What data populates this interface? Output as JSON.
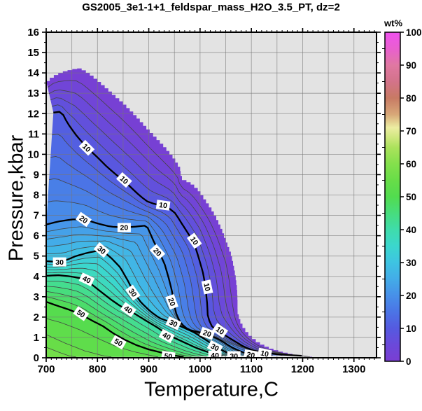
{
  "title": "GS2005_3e1-1+1_feldspar_mass_H2O_3.5_PT, dz=2",
  "colorbar": {
    "title": "wt%",
    "tick_labels": [
      0,
      10,
      20,
      30,
      40,
      50,
      60,
      70,
      80,
      90,
      100
    ],
    "minor_ticks": [
      5,
      15,
      25,
      35,
      45,
      55,
      65,
      75,
      85,
      95
    ]
  },
  "colors": {
    "plot_bg": "#e3e3e3",
    "grid": "#777777",
    "thin_contour": "#444444",
    "major_contour": "#000000",
    "frame": "#000000",
    "label_box": "#ffffff"
  },
  "chart_data": {
    "type": "contour",
    "title": "GS2005_3e1-1+1_feldspar_mass_H2O_3.5_PT, dz=2",
    "xlabel": "Temperature,C",
    "ylabel": "Pressure,kbar",
    "xlim": [
      700,
      1344
    ],
    "ylim": [
      0,
      16
    ],
    "x_tick_labels": [
      700,
      800,
      900,
      1000,
      1100,
      1200,
      1300
    ],
    "y_tick_labels": [
      0,
      1,
      2,
      3,
      4,
      5,
      6,
      7,
      8,
      9,
      10,
      11,
      12,
      13,
      14,
      15,
      16
    ],
    "x_major": 100,
    "x_minor": 10,
    "x_grid": 50,
    "y_major": 1,
    "y_minor": 0.5,
    "y_grid": 1,
    "contour_interval": 2,
    "major_contour_interval": 10,
    "max_value": 57,
    "colormap_stops": [
      {
        "v": 0,
        "c": "#7a3ed2"
      },
      {
        "v": 5,
        "c": "#6b49da"
      },
      {
        "v": 10,
        "c": "#555ae0"
      },
      {
        "v": 15,
        "c": "#4b74e6"
      },
      {
        "v": 20,
        "c": "#4790e9"
      },
      {
        "v": 25,
        "c": "#43ace8"
      },
      {
        "v": 30,
        "c": "#3ec4e2"
      },
      {
        "v": 35,
        "c": "#3bd7cd"
      },
      {
        "v": 40,
        "c": "#3fdcab"
      },
      {
        "v": 45,
        "c": "#47dd7d"
      },
      {
        "v": 50,
        "c": "#52dc4f"
      },
      {
        "v": 55,
        "c": "#68dd48"
      },
      {
        "v": 60,
        "c": "#84e04c"
      },
      {
        "v": 65,
        "c": "#abe25c"
      },
      {
        "v": 68,
        "c": "#cfe87e"
      },
      {
        "v": 71,
        "c": "#eceda2"
      },
      {
        "v": 75,
        "c": "#d8a878"
      },
      {
        "v": 80,
        "c": "#c87a64"
      },
      {
        "v": 85,
        "c": "#d3738a"
      },
      {
        "v": 90,
        "c": "#e078a2"
      },
      {
        "v": 95,
        "c": "#e95fcf"
      },
      {
        "v": 100,
        "c": "#ef52ee"
      }
    ],
    "contours": [
      {
        "level": 0,
        "pts": [
          [
            700,
            13.6
          ],
          [
            706,
            13.75
          ],
          [
            718,
            13.95
          ],
          [
            733,
            14.08
          ],
          [
            748,
            14.18
          ],
          [
            760,
            14.22
          ],
          [
            772,
            14.1
          ],
          [
            786,
            13.85
          ],
          [
            800,
            13.55
          ],
          [
            816,
            13.2
          ],
          [
            831,
            12.85
          ],
          [
            847,
            12.5
          ],
          [
            863,
            12.1
          ],
          [
            880,
            11.65
          ],
          [
            896,
            11.2
          ],
          [
            913,
            10.75
          ],
          [
            930,
            10.3
          ],
          [
            946,
            9.8
          ],
          [
            954,
            9.5
          ],
          [
            961,
            9.2
          ],
          [
            963,
            8.75
          ],
          [
            980,
            8.55
          ],
          [
            995,
            8.2
          ],
          [
            1010,
            7.65
          ],
          [
            1021,
            7.25
          ],
          [
            1032,
            6.75
          ],
          [
            1042,
            6.2
          ],
          [
            1051,
            5.6
          ],
          [
            1060,
            5.0
          ],
          [
            1065,
            4.45
          ],
          [
            1069,
            3.9
          ],
          [
            1072,
            3.3
          ],
          [
            1073,
            2.7
          ],
          [
            1073,
            2.15
          ],
          [
            1077,
            1.75
          ],
          [
            1084,
            1.4
          ],
          [
            1095,
            1.05
          ],
          [
            1111,
            0.72
          ],
          [
            1130,
            0.48
          ],
          [
            1151,
            0.31
          ],
          [
            1173,
            0.18
          ],
          [
            1195,
            0.1
          ],
          [
            1218,
            0.04
          ]
        ]
      },
      {
        "level": 10,
        "pts": [
          [
            714,
            12.05
          ],
          [
            730,
            12.1
          ],
          [
            741,
            11.55
          ],
          [
            761,
            10.85
          ],
          [
            779,
            10.35
          ],
          [
            800,
            9.85
          ],
          [
            820,
            9.35
          ],
          [
            841,
            8.9
          ],
          [
            862,
            8.45
          ],
          [
            883,
            7.95
          ],
          [
            899,
            7.65
          ],
          [
            913,
            7.55
          ],
          [
            930,
            7.45
          ],
          [
            942,
            7.3
          ],
          [
            952,
            7.1
          ],
          [
            963,
            6.65
          ],
          [
            977,
            6.1
          ],
          [
            988,
            5.65
          ],
          [
            997,
            4.95
          ],
          [
            1006,
            4.15
          ],
          [
            1011,
            3.4
          ],
          [
            1014,
            2.6
          ],
          [
            1015,
            2.05
          ],
          [
            1021,
            1.6
          ],
          [
            1032,
            1.35
          ],
          [
            1046,
            1.15
          ],
          [
            1065,
            0.85
          ],
          [
            1087,
            0.52
          ],
          [
            1106,
            0.34
          ],
          [
            1129,
            0.24
          ],
          [
            1152,
            0.17
          ],
          [
            1176,
            0.13
          ],
          [
            1198,
            0.1
          ]
        ]
      },
      {
        "level": 20,
        "pts": [
          [
            700,
            6.55
          ],
          [
            724,
            6.7
          ],
          [
            751,
            6.8
          ],
          [
            775,
            6.8
          ],
          [
            800,
            6.6
          ],
          [
            824,
            6.45
          ],
          [
            852,
            6.4
          ],
          [
            876,
            6.45
          ],
          [
            896,
            6.5
          ],
          [
            910,
            5.7
          ],
          [
            921,
            5.15
          ],
          [
            931,
            4.6
          ],
          [
            939,
            3.9
          ],
          [
            945,
            3.3
          ],
          [
            949,
            2.7
          ],
          [
            953,
            2.2
          ],
          [
            960,
            1.8
          ],
          [
            970,
            1.5
          ],
          [
            982,
            1.35
          ],
          [
            999,
            1.25
          ],
          [
            1014,
            1.15
          ],
          [
            1029,
            1.0
          ],
          [
            1044,
            0.8
          ],
          [
            1059,
            0.55
          ],
          [
            1076,
            0.34
          ],
          [
            1091,
            0.21
          ],
          [
            1104,
            0.13
          ]
        ]
      },
      {
        "level": 30,
        "pts": [
          [
            700,
            4.75
          ],
          [
            717,
            4.72
          ],
          [
            737,
            4.78
          ],
          [
            758,
            5.0
          ],
          [
            779,
            5.15
          ],
          [
            808,
            5.3
          ],
          [
            827,
            4.9
          ],
          [
            844,
            4.45
          ],
          [
            859,
            3.8
          ],
          [
            871,
            3.2
          ],
          [
            885,
            2.72
          ],
          [
            902,
            2.3
          ],
          [
            921,
            1.95
          ],
          [
            948,
            1.7
          ],
          [
            968,
            1.48
          ],
          [
            988,
            1.25
          ],
          [
            1007,
            0.95
          ],
          [
            1025,
            0.65
          ],
          [
            1042,
            0.38
          ],
          [
            1057,
            0.2
          ],
          [
            1072,
            0.1
          ]
        ]
      },
      {
        "level": 40,
        "pts": [
          [
            700,
            4.03
          ],
          [
            724,
            4.06
          ],
          [
            747,
            4.0
          ],
          [
            769,
            3.9
          ],
          [
            789,
            3.6
          ],
          [
            809,
            3.2
          ],
          [
            827,
            2.85
          ],
          [
            844,
            2.55
          ],
          [
            860,
            2.35
          ],
          [
            877,
            2.1
          ],
          [
            896,
            1.8
          ],
          [
            916,
            1.5
          ],
          [
            935,
            1.17
          ],
          [
            954,
            0.93
          ],
          [
            974,
            0.7
          ],
          [
            993,
            0.48
          ],
          [
            1012,
            0.31
          ],
          [
            1029,
            0.17
          ],
          [
            1043,
            0.1
          ]
        ]
      },
      {
        "level": 50,
        "pts": [
          [
            700,
            2.75
          ],
          [
            719,
            2.58
          ],
          [
            744,
            2.37
          ],
          [
            768,
            2.13
          ],
          [
            790,
            1.82
          ],
          [
            811,
            1.55
          ],
          [
            831,
            1.2
          ],
          [
            852,
            0.9
          ],
          [
            876,
            0.62
          ],
          [
            900,
            0.41
          ],
          [
            927,
            0.24
          ],
          [
            952,
            0.1
          ],
          [
            968,
            0.04
          ]
        ]
      },
      {
        "level": 52,
        "pts": [
          [
            700,
            1.93
          ],
          [
            730,
            1.72
          ],
          [
            765,
            1.38
          ],
          [
            800,
            0.96
          ],
          [
            834,
            0.58
          ],
          [
            869,
            0.31
          ],
          [
            899,
            0.14
          ],
          [
            918,
            0.04
          ]
        ]
      },
      {
        "level": 54,
        "pts": [
          [
            700,
            1.14
          ],
          [
            737,
            0.72
          ],
          [
            775,
            0.34
          ],
          [
            811,
            0.1
          ],
          [
            827,
            0.04
          ]
        ]
      },
      {
        "level": 56,
        "pts": [
          [
            700,
            0.52
          ],
          [
            724,
            0.28
          ],
          [
            744,
            0.1
          ],
          [
            758,
            0.04
          ]
        ]
      }
    ],
    "labels": [
      {
        "t": "10",
        "T": 779,
        "p": 10.32,
        "a": 45
      },
      {
        "t": "10",
        "T": 852,
        "p": 8.74,
        "a": 42
      },
      {
        "t": "10",
        "T": 928,
        "p": 7.5,
        "a": 8
      },
      {
        "t": "10",
        "T": 989,
        "p": 5.75,
        "a": 55
      },
      {
        "t": "10",
        "T": 1014,
        "p": 3.48,
        "a": 78
      },
      {
        "t": "10",
        "T": 1039,
        "p": 1.34,
        "a": 35
      },
      {
        "t": "10",
        "T": 1126,
        "p": 0.21,
        "a": 12
      },
      {
        "t": "20",
        "T": 773,
        "p": 6.8,
        "a": 35
      },
      {
        "t": "20",
        "T": 852,
        "p": 6.4,
        "a": 0
      },
      {
        "t": "20",
        "T": 917,
        "p": 5.2,
        "a": 48
      },
      {
        "t": "20",
        "T": 945,
        "p": 2.75,
        "a": 70
      },
      {
        "t": "20",
        "T": 1014,
        "p": 1.2,
        "a": 20
      },
      {
        "t": "20",
        "T": 1099,
        "p": 0.14,
        "a": 10
      },
      {
        "t": "30",
        "T": 726,
        "p": 4.71,
        "a": 0
      },
      {
        "t": "30",
        "T": 808,
        "p": 5.3,
        "a": 40
      },
      {
        "t": "30",
        "T": 869,
        "p": 3.2,
        "a": 55
      },
      {
        "t": "30",
        "T": 948,
        "p": 1.7,
        "a": 25
      },
      {
        "t": "30",
        "T": 1029,
        "p": 0.52,
        "a": 28
      },
      {
        "t": "30",
        "T": 1066,
        "p": 0.1,
        "a": 0
      },
      {
        "t": "40",
        "T": 779,
        "p": 3.85,
        "a": 25
      },
      {
        "t": "40",
        "T": 860,
        "p": 2.37,
        "a": 35
      },
      {
        "t": "40",
        "T": 935,
        "p": 1.07,
        "a": 28
      },
      {
        "t": "40",
        "T": 1029,
        "p": 0.12,
        "a": 0
      },
      {
        "t": "50",
        "T": 768,
        "p": 2.17,
        "a": 35
      },
      {
        "t": "50",
        "T": 841,
        "p": 0.76,
        "a": 30
      },
      {
        "t": "50",
        "T": 938,
        "p": 0.08,
        "a": 8
      }
    ]
  }
}
